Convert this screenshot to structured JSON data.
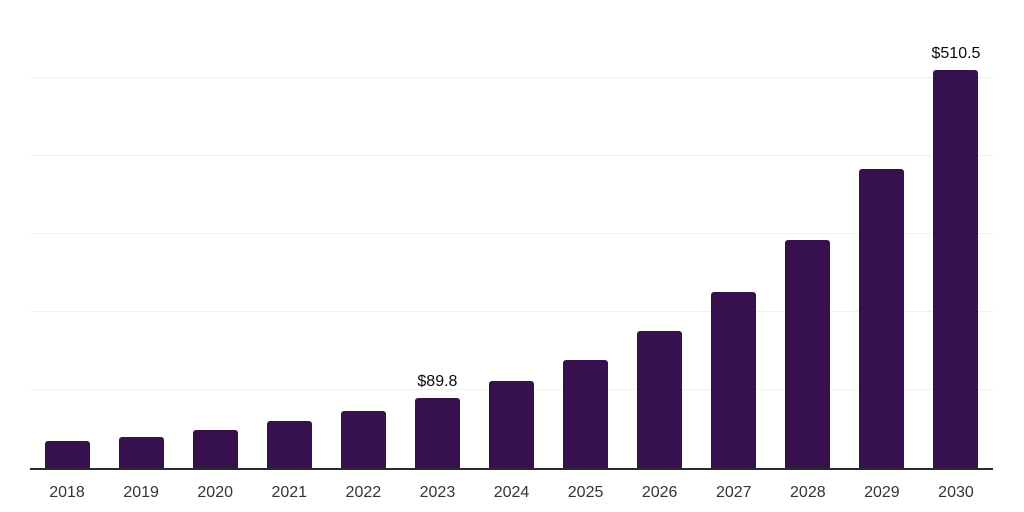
{
  "chart_data": {
    "type": "bar",
    "title": "",
    "xlabel": "",
    "ylabel": "",
    "categories": [
      "2018",
      "2019",
      "2020",
      "2021",
      "2022",
      "2023",
      "2024",
      "2025",
      "2026",
      "2027",
      "2028",
      "2029",
      "2030"
    ],
    "values": [
      34.5,
      40.0,
      48.7,
      60.3,
      73.1,
      89.8,
      111.5,
      138.6,
      175.6,
      225.6,
      292.3,
      383.3,
      510.5
    ],
    "bar_labels": [
      "",
      "",
      "",
      "",
      "",
      "$89.8",
      "",
      "",
      "",
      "",
      "",
      "",
      "$510.5"
    ],
    "ylim": [
      0,
      600
    ],
    "gridline_values": [
      100,
      200,
      300,
      400,
      500,
      600
    ],
    "grid": "horizontal",
    "legend": "none",
    "currency_prefix": "$"
  },
  "style": {
    "background": "#ffffff",
    "bar_color": "#36114e",
    "gridline_color": "#f0f0f0",
    "axis_color": "#2b2b2b",
    "tick_label_color": "#333333",
    "data_label_color": "#0a0a0a"
  }
}
